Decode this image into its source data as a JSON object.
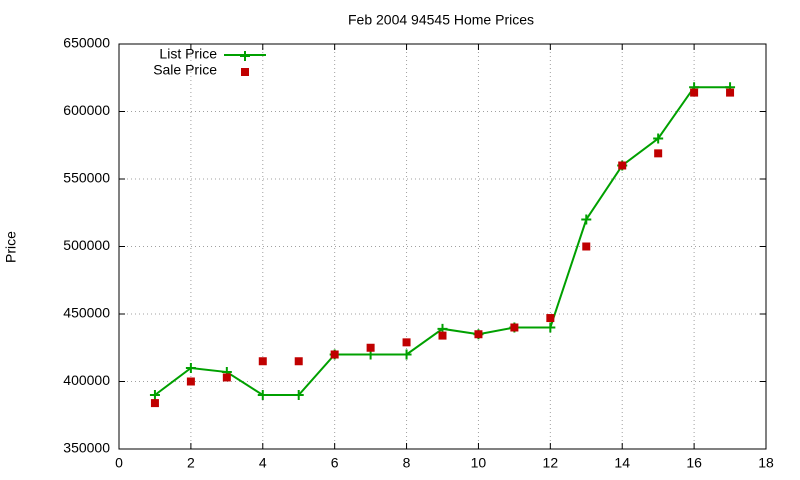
{
  "chart_data": {
    "type": "line",
    "title": "Feb 2004 94545 Home Prices",
    "y_label": "Price",
    "x": [
      1,
      2,
      3,
      4,
      5,
      6,
      7,
      8,
      9,
      10,
      11,
      12,
      13,
      14,
      15,
      16,
      17
    ],
    "series": [
      {
        "name": "List Price",
        "color": "#00a000",
        "line": true,
        "marker": "plus",
        "values": [
          390000,
          410000,
          407000,
          390000,
          390000,
          420000,
          420000,
          420000,
          439000,
          435000,
          440000,
          440000,
          520000,
          560000,
          580000,
          618000,
          618000
        ]
      },
      {
        "name": "Sale Price",
        "color": "#c00000",
        "line": false,
        "marker": "square",
        "values": [
          384000,
          400000,
          403000,
          415000,
          415000,
          420000,
          425000,
          429000,
          434000,
          435000,
          440000,
          447000,
          500000,
          560000,
          569000,
          614000,
          614000
        ]
      }
    ],
    "xlim": [
      0,
      18
    ],
    "xticks": [
      0,
      2,
      4,
      6,
      8,
      10,
      12,
      14,
      16,
      18
    ],
    "ylim": [
      350000,
      650000
    ],
    "yticks": [
      350000,
      400000,
      450000,
      500000,
      550000,
      600000,
      650000
    ],
    "grid": true,
    "legend_position": "top-left"
  }
}
